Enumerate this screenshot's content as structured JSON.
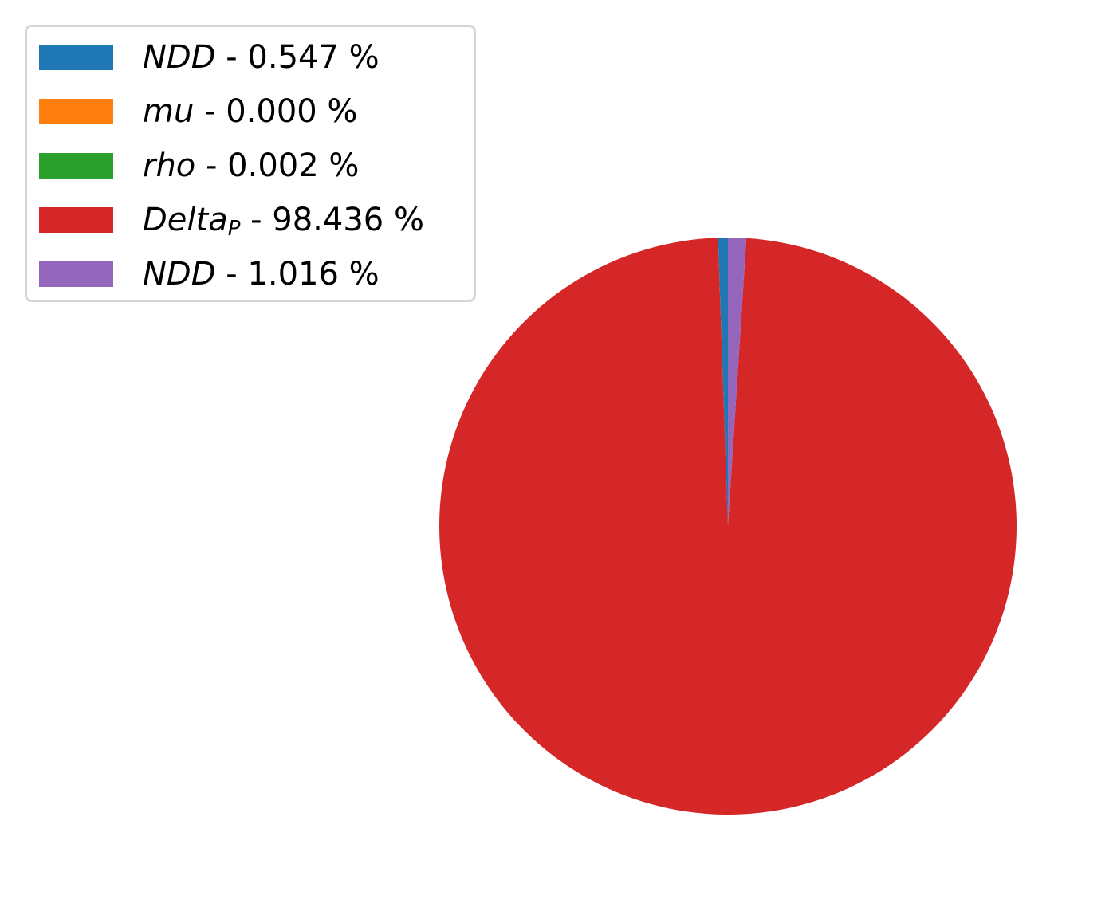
{
  "chart_data": {
    "type": "pie",
    "start_angle_deg": 90,
    "direction": "counterclockwise",
    "legend_placement": "upper-left",
    "slices": [
      {
        "name": "NDD",
        "subscript": "",
        "percent_label": "0.547 %",
        "value": 0.547,
        "color": "#1f77b4"
      },
      {
        "name": "mu",
        "subscript": "",
        "percent_label": "0.000 %",
        "value": 0.0,
        "color": "#ff7f0e"
      },
      {
        "name": "rho",
        "subscript": "",
        "percent_label": "0.002 %",
        "value": 0.002,
        "color": "#2ca02c"
      },
      {
        "name": "Delta",
        "subscript": "P",
        "percent_label": "98.436 %",
        "value": 98.436,
        "color": "#d62728"
      },
      {
        "name": "NDD",
        "subscript": "",
        "percent_label": "1.016 %",
        "value": 1.016,
        "color": "#9467bd"
      }
    ]
  }
}
